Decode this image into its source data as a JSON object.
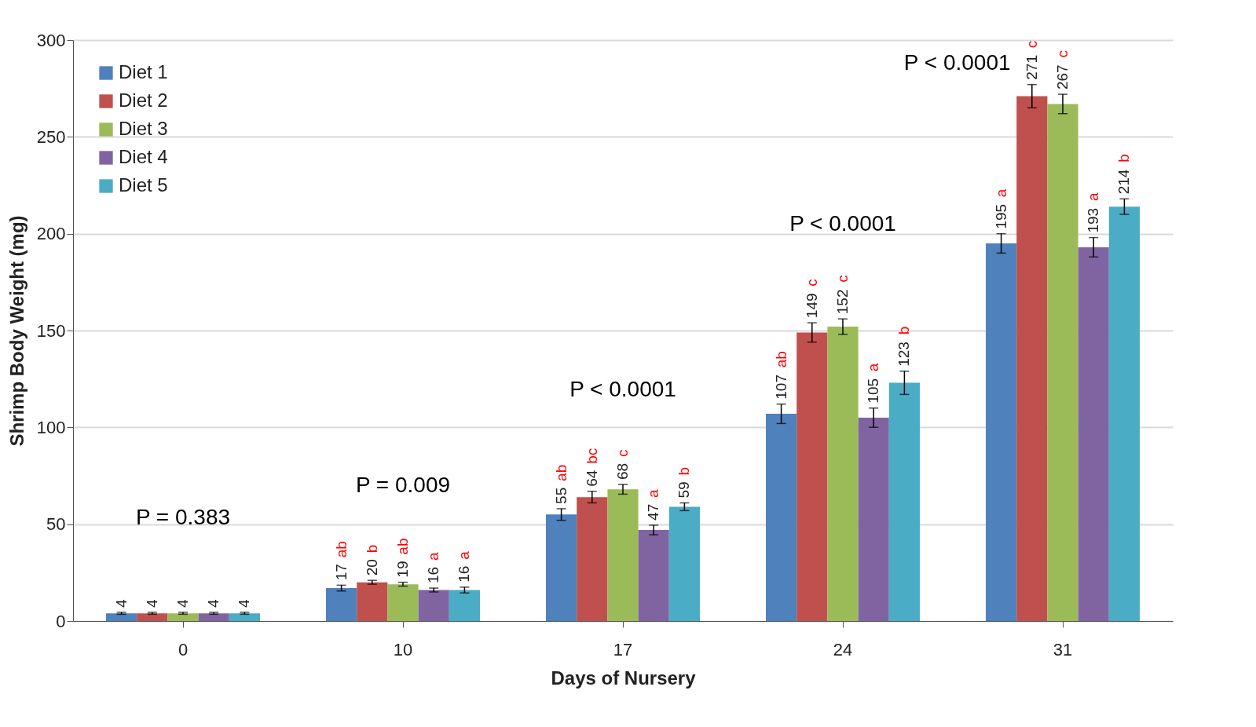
{
  "chart_data": {
    "type": "bar",
    "xlabel": "Days of Nursery",
    "ylabel": "Shrimp Body Weight (mg)",
    "categories": [
      "0",
      "10",
      "17",
      "24",
      "31"
    ],
    "series": [
      {
        "name": "Diet 1",
        "color": "#4f81bd",
        "values": [
          4,
          17,
          55,
          107,
          195
        ],
        "errors": [
          0.5,
          1.5,
          3,
          5,
          5
        ],
        "value_labels": [
          "4",
          "17 ab",
          "55 ab",
          "107 ab",
          "195 a"
        ]
      },
      {
        "name": "Diet 2",
        "color": "#c0504d",
        "values": [
          4,
          20,
          64,
          149,
          271
        ],
        "errors": [
          0.5,
          1,
          3,
          5,
          6
        ],
        "value_labels": [
          "4",
          "20 b",
          "64 bc",
          "149 c",
          "271 c"
        ]
      },
      {
        "name": "Diet 3",
        "color": "#9bbb59",
        "values": [
          4,
          19,
          68,
          152,
          267
        ],
        "errors": [
          0.5,
          1,
          2.5,
          4,
          5
        ],
        "value_labels": [
          "4",
          "19 ab",
          "68 c",
          "152 c",
          "267 c"
        ]
      },
      {
        "name": "Diet 4",
        "color": "#8064a2",
        "values": [
          4,
          16,
          47,
          105,
          193
        ],
        "errors": [
          0.5,
          1,
          2.5,
          5,
          5
        ],
        "value_labels": [
          "4",
          "16 a",
          "47 a",
          "105 a",
          "193 a"
        ]
      },
      {
        "name": "Diet 5",
        "color": "#4bacc6",
        "values": [
          4,
          16,
          59,
          123,
          214
        ],
        "errors": [
          0.5,
          1.5,
          2,
          6,
          4
        ],
        "value_labels": [
          "4",
          "16 a",
          "59 b",
          "123 b",
          "214 b"
        ]
      }
    ],
    "ylim": [
      0,
      300
    ],
    "yticks": [
      0,
      50,
      100,
      150,
      200,
      250,
      300
    ],
    "grid": "y",
    "legend": "top left",
    "annotations": [
      "P = 0.383",
      "P = 0.009",
      "P < 0.0001",
      "P < 0.0001",
      "P < 0.0001"
    ]
  }
}
